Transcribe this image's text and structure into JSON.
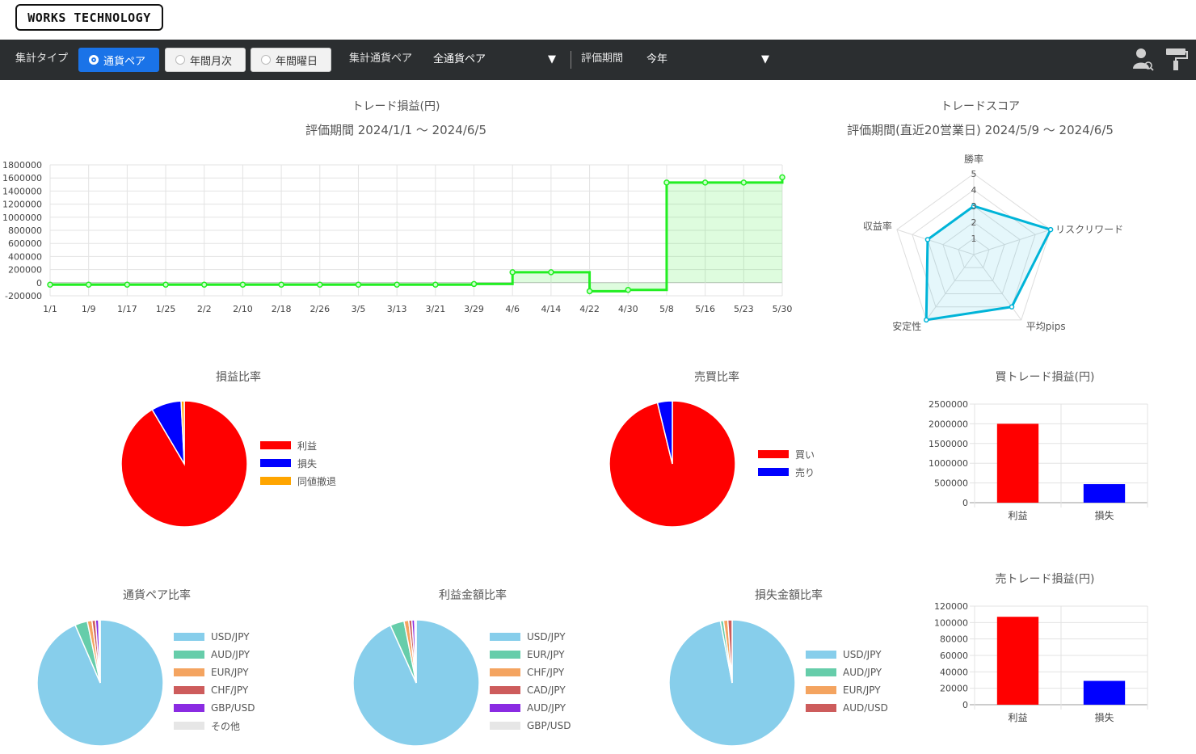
{
  "app": {
    "logo": "WORKS TECHNOLOGY"
  },
  "toolbar": {
    "type_label": "集計タイプ",
    "types": [
      "通貨ペア",
      "年間月次",
      "年間曜日"
    ],
    "pair_label": "集計通貨ペア",
    "pair_value": "全通貨ペア",
    "period_label": "評価期間",
    "period_value": "今年"
  },
  "line_chart": {
    "title": "トレード損益(円)",
    "subtitle": "評価期間  2024/1/1 ～ 2024/6/5",
    "chart_data": {
      "type": "line",
      "color": "#22ee22",
      "y_ticks": [
        "1800000",
        "1600000",
        "1400000",
        "1200000",
        "1000000",
        "800000",
        "600000",
        "400000",
        "200000",
        "0",
        "-200000"
      ],
      "ylim": [
        -200000,
        1800000
      ],
      "x_ticks": [
        "1/1",
        "1/9",
        "1/17",
        "1/25",
        "2/2",
        "2/10",
        "2/18",
        "2/26",
        "3/5",
        "3/13",
        "3/21",
        "3/29",
        "4/6",
        "4/14",
        "4/22",
        "4/30",
        "5/8",
        "5/16",
        "5/23",
        "5/30"
      ],
      "points": [
        {
          "x": 0,
          "y": -30000
        },
        {
          "x": 1,
          "y": -30000
        },
        {
          "x": 2,
          "y": -30000
        },
        {
          "x": 3,
          "y": -30000
        },
        {
          "x": 4,
          "y": -30000
        },
        {
          "x": 5,
          "y": -30000
        },
        {
          "x": 6,
          "y": -30000
        },
        {
          "x": 7,
          "y": -30000
        },
        {
          "x": 8,
          "y": -30000
        },
        {
          "x": 9,
          "y": -30000
        },
        {
          "x": 10,
          "y": -30000
        },
        {
          "x": 11,
          "y": -20000
        },
        {
          "x": 12,
          "y": 160000
        },
        {
          "x": 13,
          "y": 160000
        },
        {
          "x": 14,
          "y": -130000
        },
        {
          "x": 15,
          "y": -110000
        },
        {
          "x": 16,
          "y": 1530000
        },
        {
          "x": 17,
          "y": 1530000
        },
        {
          "x": 18,
          "y": 1530000
        },
        {
          "x": 19,
          "y": 1610000
        }
      ]
    }
  },
  "radar": {
    "title": "トレードスコア",
    "subtitle": "評価期間(直近20営業日)  2024/5/9 ～ 2024/6/5",
    "chart_data": {
      "type": "radar",
      "axes": [
        "勝率",
        "リスクリワード",
        "平均pips",
        "安定性",
        "収益率"
      ],
      "values": [
        3,
        5,
        4,
        5,
        3
      ],
      "ticks": [
        "1",
        "2",
        "3",
        "4",
        "5"
      ],
      "max": 5,
      "color": "#00b4d8"
    }
  },
  "pies": [
    {
      "title": "損益比率",
      "chart_data": {
        "type": "pie",
        "slices": [
          {
            "label": "利益",
            "value": 91.5,
            "color": "#ff0000"
          },
          {
            "label": "損失",
            "value": 7.7,
            "color": "#0000ff"
          },
          {
            "label": "同値撤退",
            "value": 0.8,
            "color": "#ffa500"
          }
        ]
      }
    },
    {
      "title": "売買比率",
      "chart_data": {
        "type": "pie",
        "slices": [
          {
            "label": "買い",
            "value": 96.2,
            "color": "#ff0000"
          },
          {
            "label": "売り",
            "value": 3.8,
            "color": "#0000ff"
          }
        ]
      }
    },
    {
      "title": "通貨ペア比率",
      "chart_data": {
        "type": "pie",
        "slices": [
          {
            "label": "USD/JPY",
            "value": 93.5,
            "color": "#87ceeb"
          },
          {
            "label": "AUD/JPY",
            "value": 3.2,
            "color": "#66cdaa"
          },
          {
            "label": "EUR/JPY",
            "value": 1.2,
            "color": "#f4a460"
          },
          {
            "label": "CHF/JPY",
            "value": 0.9,
            "color": "#cd5c5c"
          },
          {
            "label": "GBP/USD",
            "value": 0.8,
            "color": "#8a2be2"
          },
          {
            "label": "その他",
            "value": 0.4,
            "color": "#e6e6e6"
          }
        ]
      }
    },
    {
      "title": "利益金額比率",
      "chart_data": {
        "type": "pie",
        "slices": [
          {
            "label": "USD/JPY",
            "value": 93.3,
            "color": "#87ceeb"
          },
          {
            "label": "EUR/JPY",
            "value": 3.6,
            "color": "#66cdaa"
          },
          {
            "label": "CHF/JPY",
            "value": 1.2,
            "color": "#f4a460"
          },
          {
            "label": "CAD/JPY",
            "value": 0.8,
            "color": "#cd5c5c"
          },
          {
            "label": "AUD/JPY",
            "value": 0.7,
            "color": "#8a2be2"
          },
          {
            "label": "GBP/USD",
            "value": 0.4,
            "color": "#e6e6e6"
          }
        ]
      }
    },
    {
      "title": "損失金額比率",
      "chart_data": {
        "type": "pie",
        "slices": [
          {
            "label": "USD/JPY",
            "value": 97,
            "color": "#87ceeb"
          },
          {
            "label": "AUD/JPY",
            "value": 0.8,
            "color": "#66cdaa"
          },
          {
            "label": "EUR/JPY",
            "value": 1.1,
            "color": "#f4a460"
          },
          {
            "label": "AUD/USD",
            "value": 1.1,
            "color": "#cd5c5c"
          }
        ]
      }
    }
  ],
  "bars": [
    {
      "title": "買トレード損益(円)",
      "chart_data": {
        "type": "bar",
        "categories": [
          "利益",
          "損失"
        ],
        "values": [
          2000000,
          470000
        ],
        "colors": [
          "#ff0000",
          "#0000ff"
        ],
        "y_ticks": [
          "2500000",
          "2000000",
          "1500000",
          "1000000",
          "500000",
          "0"
        ],
        "ylim": [
          0,
          2500000
        ]
      }
    },
    {
      "title": "売トレード損益(円)",
      "chart_data": {
        "type": "bar",
        "categories": [
          "利益",
          "損失"
        ],
        "values": [
          107000,
          29000
        ],
        "colors": [
          "#ff0000",
          "#0000ff"
        ],
        "y_ticks": [
          "120000",
          "100000",
          "80000",
          "60000",
          "40000",
          "20000",
          "0"
        ],
        "ylim": [
          0,
          120000
        ]
      }
    }
  ]
}
